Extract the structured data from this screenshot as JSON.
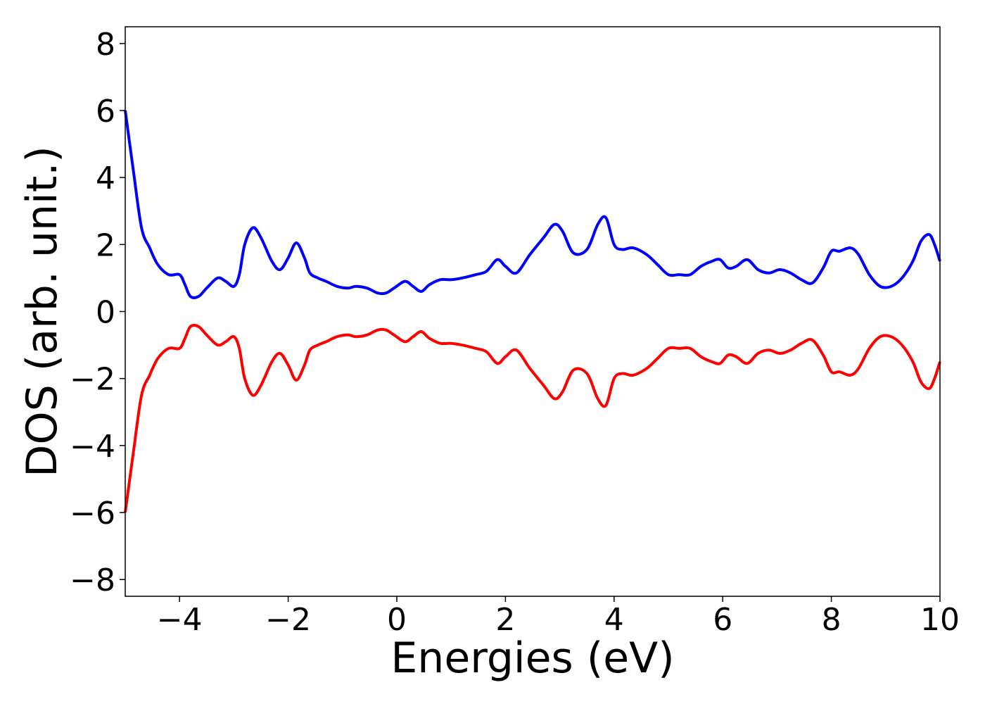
{
  "chart_data": {
    "type": "line",
    "title": "",
    "xlabel": "Energies (eV)",
    "ylabel": "DOS (arb. unit.)",
    "xlim": [
      -5,
      10
    ],
    "ylim": [
      -8.5,
      8.5
    ],
    "xticks": [
      -4,
      -2,
      0,
      2,
      4,
      6,
      8,
      10
    ],
    "xtick_labels": [
      "−4",
      "−2",
      "0",
      "2",
      "4",
      "6",
      "8",
      "10"
    ],
    "yticks": [
      8,
      6,
      4,
      2,
      0,
      -2,
      -4,
      -6,
      -8
    ],
    "ytick_labels": [
      "8",
      "6",
      "4",
      "2",
      "0",
      "−2",
      "−4",
      "−6",
      "−8"
    ],
    "grid": false,
    "legend": "none",
    "series": [
      {
        "color": "#0000ff",
        "x": [
          -5.0,
          -4.85,
          -4.7,
          -4.55,
          -4.4,
          -4.2,
          -4.0,
          -3.9,
          -3.8,
          -3.65,
          -3.5,
          -3.3,
          -3.15,
          -3.0,
          -2.9,
          -2.8,
          -2.65,
          -2.5,
          -2.3,
          -2.15,
          -2.0,
          -1.85,
          -1.7,
          -1.6,
          -1.45,
          -1.3,
          -1.1,
          -0.9,
          -0.75,
          -0.55,
          -0.35,
          -0.2,
          -0.05,
          0.15,
          0.3,
          0.45,
          0.6,
          0.8,
          1.0,
          1.2,
          1.45,
          1.65,
          1.85,
          2.0,
          2.2,
          2.45,
          2.7,
          2.9,
          3.05,
          3.25,
          3.5,
          3.7,
          3.85,
          4.0,
          4.15,
          4.35,
          4.6,
          4.8,
          5.0,
          5.2,
          5.4,
          5.6,
          5.8,
          5.95,
          6.1,
          6.25,
          6.45,
          6.65,
          6.85,
          7.05,
          7.25,
          7.45,
          7.65,
          7.85,
          8.0,
          8.15,
          8.35,
          8.5,
          8.7,
          8.9,
          9.1,
          9.3,
          9.5,
          9.65,
          9.8,
          9.9,
          10.0
        ],
        "y": [
          6.0,
          4.2,
          2.5,
          1.9,
          1.4,
          1.1,
          1.1,
          0.8,
          0.45,
          0.45,
          0.7,
          1.0,
          0.9,
          0.75,
          1.1,
          2.0,
          2.5,
          2.2,
          1.5,
          1.25,
          1.6,
          2.05,
          1.6,
          1.15,
          1.0,
          0.9,
          0.75,
          0.7,
          0.75,
          0.7,
          0.55,
          0.55,
          0.7,
          0.9,
          0.75,
          0.6,
          0.8,
          0.95,
          0.95,
          1.0,
          1.1,
          1.2,
          1.55,
          1.35,
          1.15,
          1.7,
          2.2,
          2.6,
          2.4,
          1.75,
          1.85,
          2.6,
          2.8,
          2.0,
          1.85,
          1.9,
          1.7,
          1.4,
          1.1,
          1.1,
          1.1,
          1.35,
          1.5,
          1.55,
          1.3,
          1.35,
          1.55,
          1.25,
          1.15,
          1.25,
          1.15,
          0.95,
          0.85,
          1.3,
          1.8,
          1.8,
          1.9,
          1.7,
          1.1,
          0.75,
          0.75,
          1.0,
          1.5,
          2.1,
          2.3,
          2.0,
          1.5
        ]
      },
      {
        "color": "#ff0000",
        "x": [
          -5.0,
          -4.85,
          -4.7,
          -4.55,
          -4.4,
          -4.2,
          -4.0,
          -3.9,
          -3.8,
          -3.65,
          -3.5,
          -3.3,
          -3.15,
          -3.0,
          -2.9,
          -2.8,
          -2.65,
          -2.5,
          -2.3,
          -2.15,
          -2.0,
          -1.85,
          -1.7,
          -1.6,
          -1.45,
          -1.3,
          -1.1,
          -0.9,
          -0.75,
          -0.55,
          -0.35,
          -0.2,
          -0.05,
          0.15,
          0.3,
          0.45,
          0.6,
          0.8,
          1.0,
          1.2,
          1.45,
          1.65,
          1.85,
          2.0,
          2.2,
          2.45,
          2.7,
          2.9,
          3.05,
          3.25,
          3.5,
          3.7,
          3.85,
          4.0,
          4.15,
          4.35,
          4.6,
          4.8,
          5.0,
          5.2,
          5.4,
          5.6,
          5.8,
          5.95,
          6.1,
          6.25,
          6.45,
          6.65,
          6.85,
          7.05,
          7.25,
          7.45,
          7.65,
          7.85,
          8.0,
          8.15,
          8.35,
          8.5,
          8.7,
          8.9,
          9.1,
          9.3,
          9.5,
          9.65,
          9.8,
          9.9,
          10.0
        ],
        "y": [
          -6.0,
          -4.2,
          -2.5,
          -1.9,
          -1.4,
          -1.1,
          -1.1,
          -0.8,
          -0.45,
          -0.45,
          -0.7,
          -1.0,
          -0.9,
          -0.75,
          -1.1,
          -2.0,
          -2.5,
          -2.2,
          -1.5,
          -1.25,
          -1.6,
          -2.05,
          -1.6,
          -1.15,
          -1.0,
          -0.9,
          -0.75,
          -0.7,
          -0.75,
          -0.7,
          -0.55,
          -0.55,
          -0.7,
          -0.9,
          -0.75,
          -0.6,
          -0.8,
          -0.95,
          -0.95,
          -1.0,
          -1.1,
          -1.2,
          -1.55,
          -1.35,
          -1.15,
          -1.7,
          -2.2,
          -2.6,
          -2.4,
          -1.75,
          -1.85,
          -2.6,
          -2.8,
          -2.0,
          -1.85,
          -1.9,
          -1.7,
          -1.4,
          -1.1,
          -1.1,
          -1.1,
          -1.35,
          -1.5,
          -1.55,
          -1.3,
          -1.35,
          -1.55,
          -1.25,
          -1.15,
          -1.25,
          -1.15,
          -0.95,
          -0.85,
          -1.3,
          -1.8,
          -1.8,
          -1.9,
          -1.7,
          -1.1,
          -0.75,
          -0.75,
          -1.0,
          -1.5,
          -2.1,
          -2.3,
          -2.0,
          -1.5
        ]
      }
    ]
  }
}
